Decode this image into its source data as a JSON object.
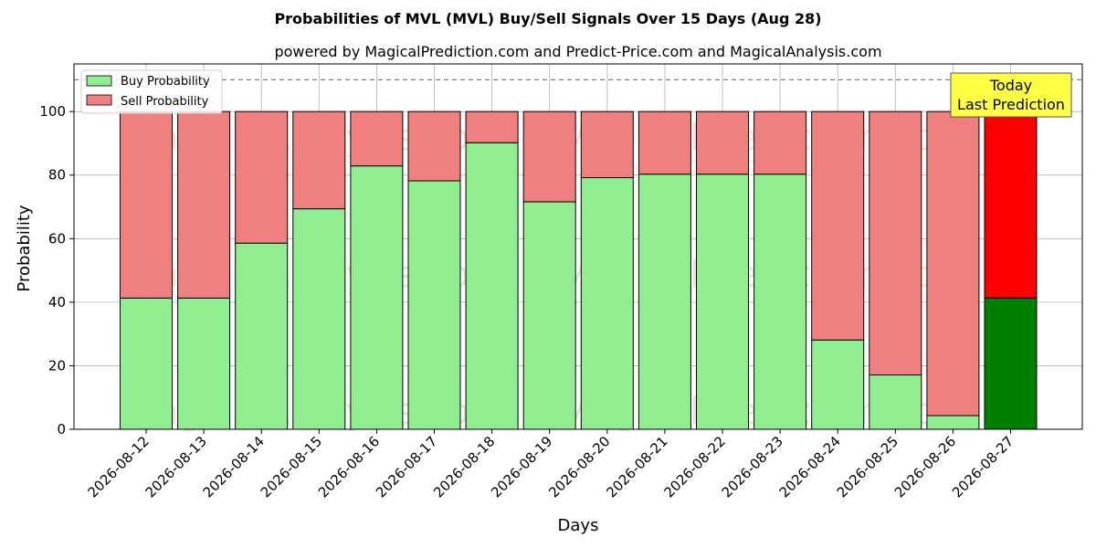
{
  "chart_data": {
    "type": "bar",
    "stacked": true,
    "title": "Probabilities of MVL (MVL) Buy/Sell Signals Over 15 Days (Aug 28)",
    "subtitle": "powered by MagicalPrediction.com and Predict-Price.com and MagicalAnalysis.com",
    "xlabel": "Days",
    "ylabel": "Probability",
    "ylim": [
      0,
      115
    ],
    "yticks": [
      0,
      20,
      40,
      60,
      80,
      100
    ],
    "reference_line": 110,
    "grid": true,
    "legend_position": "top-left",
    "categories": [
      "2026-08-12",
      "2026-08-13",
      "2026-08-14",
      "2026-08-15",
      "2026-08-16",
      "2026-08-17",
      "2026-08-18",
      "2026-08-19",
      "2026-08-20",
      "2026-08-21",
      "2026-08-22",
      "2026-08-23",
      "2026-08-24",
      "2026-08-25",
      "2026-08-26",
      "2026-08-27"
    ],
    "series": [
      {
        "name": "Buy Probability",
        "color": "#90ee90",
        "values": [
          41.3,
          41.3,
          58.6,
          69.4,
          82.9,
          78.2,
          90.2,
          71.6,
          79.2,
          80.3,
          80.3,
          80.3,
          28.1,
          17.1,
          4.3,
          41.3
        ]
      },
      {
        "name": "Sell Probability",
        "color": "#f08080",
        "values": [
          58.7,
          58.7,
          41.4,
          30.6,
          17.1,
          21.8,
          9.8,
          28.4,
          20.8,
          19.7,
          19.7,
          19.7,
          71.9,
          82.9,
          95.7,
          58.7
        ]
      }
    ],
    "highlight": {
      "index": 15,
      "buy_color": "#008000",
      "sell_color": "#ff0000"
    },
    "annotation": {
      "lines": [
        "Today",
        "Last Prediction"
      ],
      "background": "#ffff44"
    },
    "watermarks": [
      "MagicalAnalysis.com",
      "MagicalPrediction.com"
    ]
  }
}
